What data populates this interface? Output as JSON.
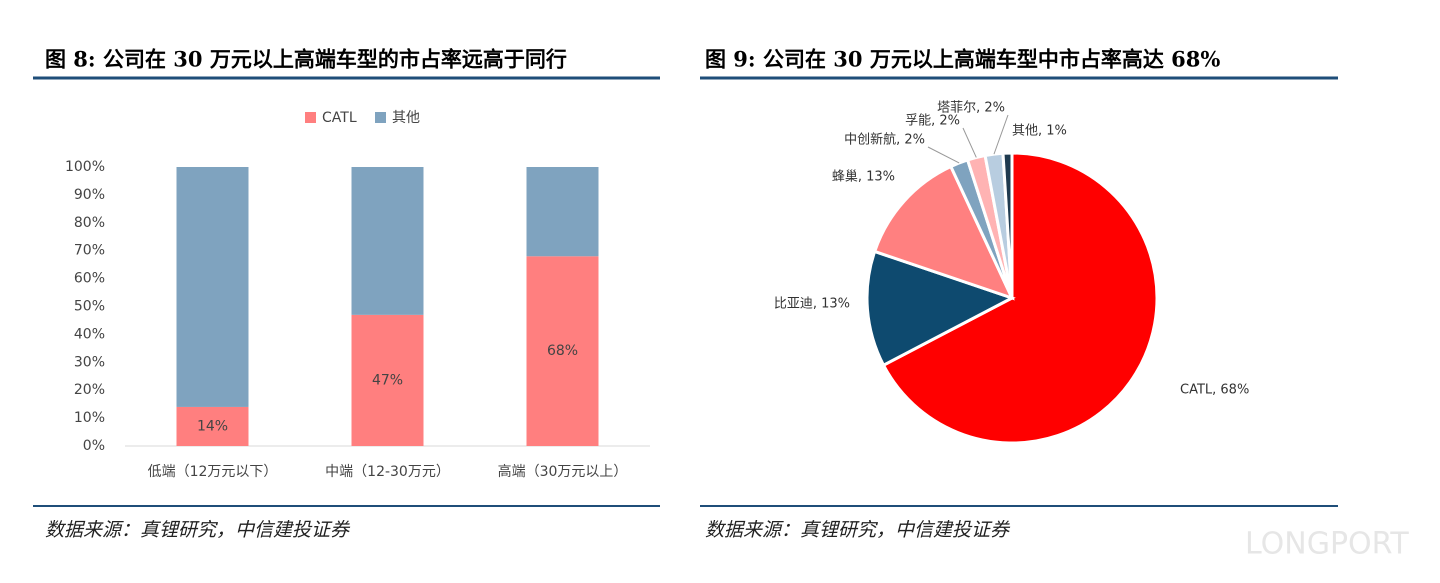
{
  "chart_data": [
    {
      "type": "stacked_bar",
      "title": "图 8: 公司在 30 万元以上高端车型的市占率远高于同行",
      "source": "数据来源：真锂研究，中信建投证券",
      "categories": [
        "低端（12万元以下）",
        "中端（12-30万元）",
        "高端（30万元以上）"
      ],
      "series": [
        {
          "name": "CATL",
          "color": "#ff7f7f",
          "values": [
            14,
            47,
            68
          ],
          "value_labels": [
            "14%",
            "47%",
            "68%"
          ]
        },
        {
          "name": "其他",
          "color": "#7fa3bf",
          "values": [
            86,
            53,
            32
          ]
        }
      ],
      "ylim": [
        0,
        100
      ],
      "yticks": [
        {
          "value": 0,
          "label": "0%"
        },
        {
          "value": 10,
          "label": "10%"
        },
        {
          "value": 20,
          "label": "20%"
        },
        {
          "value": 30,
          "label": "30%"
        },
        {
          "value": 40,
          "label": "40%"
        },
        {
          "value": 50,
          "label": "50%"
        },
        {
          "value": 60,
          "label": "60%"
        },
        {
          "value": 70,
          "label": "70%"
        },
        {
          "value": 80,
          "label": "80%"
        },
        {
          "value": 90,
          "label": "90%"
        },
        {
          "value": 100,
          "label": "100%"
        }
      ],
      "legend": "top"
    },
    {
      "type": "pie",
      "title": "图 9: 公司在 30 万元以上高端车型中市占率高达 68%",
      "source": "数据来源：真锂研究，中信建投证券",
      "values": [
        68,
        13,
        13,
        2,
        2,
        2,
        1
      ],
      "value_labels": [
        "CATL, 68%",
        "比亚迪, 13%",
        "蜂巢, 13%",
        "中创新航, 2%",
        "孚能, 2%",
        "塔菲尔, 2%",
        "其他, 1%"
      ],
      "colors": [
        "#ff0000",
        "#0e4a6f",
        "#ff8080",
        "#7fa3bf",
        "#ffb3b3",
        "#b8cde0",
        "#1f3a4f"
      ]
    }
  ],
  "watermark": "LONGPORT"
}
